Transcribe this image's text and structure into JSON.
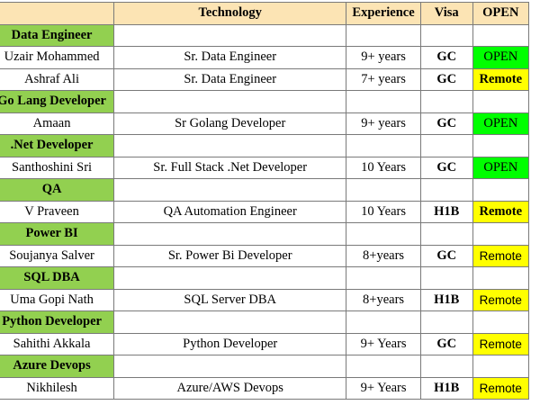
{
  "header": {
    "name": "",
    "technology": "Technology",
    "experience": "Experience",
    "visa": "Visa",
    "status": "OPEN"
  },
  "sections": [
    {
      "category": "Data Engineer",
      "rows": [
        {
          "name": "Uzair Mohammed",
          "technology": "Sr. Data Engineer",
          "experience": "9+ years",
          "visa": "GC",
          "status": "OPEN"
        },
        {
          "name": "Ashraf Ali",
          "technology": "Sr. Data Engineer",
          "experience": "7+ years",
          "visa": "GC",
          "status": "Remote"
        }
      ]
    },
    {
      "category": "Go Lang Developer",
      "rows": [
        {
          "name": "Amaan",
          "technology": "Sr Golang Developer",
          "experience": "9+ years",
          "visa": "GC",
          "status": "OPEN"
        }
      ]
    },
    {
      "category": ".Net Developer",
      "rows": [
        {
          "name": "Santhoshini Sri",
          "technology": "Sr. Full Stack .Net Developer",
          "experience": "10 Years",
          "visa": "GC",
          "status": "OPEN"
        }
      ]
    },
    {
      "category": "QA",
      "rows": [
        {
          "name": "V Praveen",
          "technology": "QA Automation Engineer",
          "experience": "10 Years",
          "visa": "H1B",
          "status": "Remote"
        }
      ]
    },
    {
      "category": "Power BI",
      "rows": [
        {
          "name": "Soujanya Salver",
          "technology": "Sr. Power Bi Developer",
          "experience": "8+years",
          "visa": "GC",
          "status": "Remote"
        }
      ]
    },
    {
      "category": "SQL DBA",
      "rows": [
        {
          "name": "Uma Gopi Nath",
          "technology": "SQL Server DBA",
          "experience": "8+years",
          "visa": "H1B",
          "status": "Remote"
        }
      ]
    },
    {
      "category": "Python Developer",
      "rows": [
        {
          "name": "Sahithi Akkala",
          "technology": "Python Developer",
          "experience": "9+ Years",
          "visa": "GC",
          "status": "Remote"
        }
      ]
    },
    {
      "category": "Azure Devops",
      "rows": [
        {
          "name": "Nikhilesh",
          "technology": "Azure/AWS Devops",
          "experience": "9+ Years",
          "visa": "H1B",
          "status": "Remote"
        }
      ]
    }
  ],
  "colors": {
    "header_bg": "#fce4b4",
    "category_bg": "#92d050",
    "open_bg": "#00ff00",
    "remote_bg": "#ffff00"
  }
}
